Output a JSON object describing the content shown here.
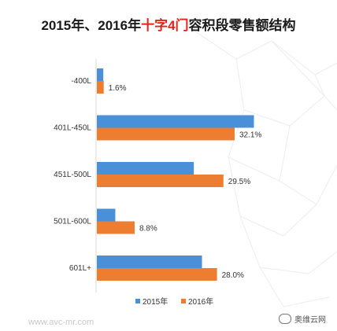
{
  "title": {
    "prefix": "2015年、2016年",
    "highlight": "十字4门",
    "suffix": "容积段零售额结构"
  },
  "chart_data": {
    "type": "bar",
    "orientation": "horizontal",
    "categories": [
      "-400L",
      "401L-450L",
      "451L-500L",
      "501L-600L",
      "601L+"
    ],
    "series": [
      {
        "name": "2015年",
        "values": [
          1.5,
          36.6,
          22.6,
          4.3,
          24.5
        ]
      },
      {
        "name": "2016年",
        "values": [
          1.6,
          32.1,
          29.5,
          8.8,
          28.0
        ]
      }
    ],
    "data_labels": [
      "1.6%",
      "32.1%",
      "29.5%",
      "8.8%",
      "28.0%"
    ],
    "xlim": [
      0,
      40
    ],
    "grid": false,
    "legend_position": "bottom",
    "colors": {
      "2015年": "#4a90d9",
      "2016年": "#ed7d31"
    }
  },
  "watermark": "www.avc-mr.com",
  "logo_text": "奥维云网"
}
